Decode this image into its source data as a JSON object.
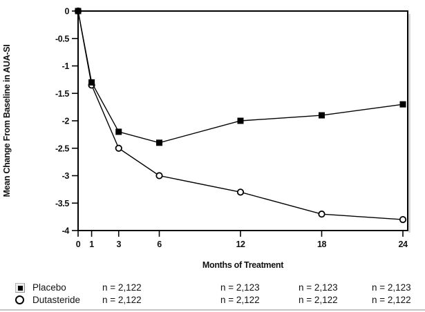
{
  "colors": {
    "foreground": "#000000",
    "background": "#ffffff",
    "bottom_rule": "#c4c4c4"
  },
  "chart_data": {
    "type": "line",
    "x": [
      0,
      1,
      3,
      6,
      12,
      18,
      24
    ],
    "series": [
      {
        "name": "Placebo",
        "marker": "filled-square",
        "color": "#000000",
        "values": [
          0,
          -1.3,
          -2.2,
          -2.4,
          -2.0,
          -1.9,
          -1.7
        ]
      },
      {
        "name": "Dutasteride",
        "marker": "open-circle",
        "color": "#000000",
        "values": [
          0,
          -1.35,
          -2.5,
          -3.0,
          -3.3,
          -3.7,
          -3.8
        ]
      }
    ],
    "title": "",
    "xlabel": "Months of Treatment",
    "ylabel": "Mean Change From Baseline in AUA-SI",
    "xlim": [
      0,
      24
    ],
    "ylim": [
      -4,
      0
    ],
    "xticks": [
      0,
      1,
      3,
      6,
      12,
      18,
      24
    ],
    "yticks": [
      0,
      -0.5,
      -1,
      -1.5,
      -2,
      -2.5,
      -3,
      -3.5,
      -4
    ],
    "ytick_labels": [
      "0",
      "-0.5",
      "-1",
      "-1.5",
      "-2",
      "-2.5",
      "-3",
      "-3.5",
      "-4"
    ],
    "grid": false,
    "legend_position": "bottom"
  },
  "legend": {
    "rows": [
      {
        "marker": "filled-square",
        "label": "Placebo",
        "n_values": [
          "n = 2,122",
          "n = 2,123",
          "n = 2,123",
          "n = 2,123"
        ]
      },
      {
        "marker": "open-circle",
        "label": "Dutasteride",
        "n_values": [
          "n = 2,122",
          "n = 2,122",
          "n = 2,122",
          "n = 2,122"
        ]
      }
    ]
  }
}
